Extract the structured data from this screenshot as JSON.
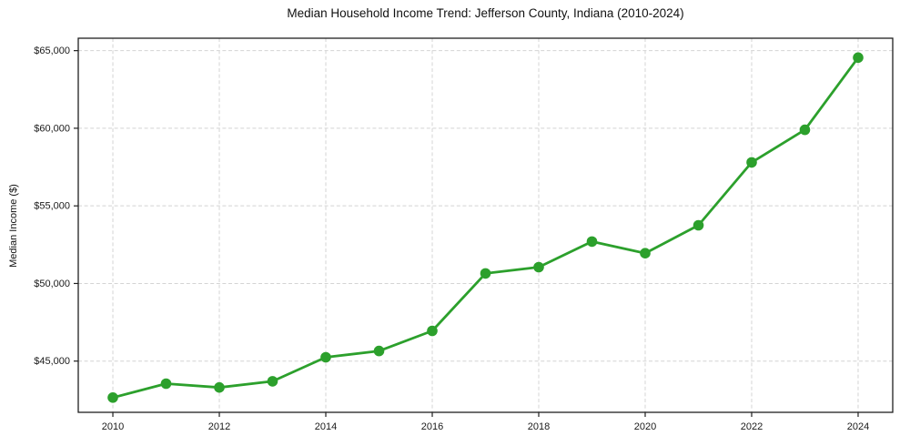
{
  "chart_data": {
    "type": "line",
    "title": "Median Household Income Trend: Jefferson County, Indiana (2010-2024)",
    "xlabel": "",
    "ylabel": "Median Income ($)",
    "x": [
      2010,
      2011,
      2012,
      2013,
      2014,
      2015,
      2016,
      2017,
      2018,
      2019,
      2020,
      2021,
      2022,
      2023,
      2024
    ],
    "series": [
      {
        "name": "Median household income",
        "color": "#2ca02c",
        "marker": "circle",
        "values": [
          42650,
          43550,
          43300,
          43700,
          45250,
          45650,
          46950,
          50650,
          51050,
          52700,
          51950,
          53750,
          57800,
          59900,
          64550
        ]
      }
    ],
    "xticks": [
      {
        "value": 2010,
        "label": "2010"
      },
      {
        "value": 2012,
        "label": "2012"
      },
      {
        "value": 2014,
        "label": "2014"
      },
      {
        "value": 2016,
        "label": "2016"
      },
      {
        "value": 2018,
        "label": "2018"
      },
      {
        "value": 2020,
        "label": "2020"
      },
      {
        "value": 2022,
        "label": "2022"
      },
      {
        "value": 2024,
        "label": "2024"
      }
    ],
    "yticks": [
      {
        "value": 45000,
        "label": "$45,000"
      },
      {
        "value": 50000,
        "label": "$50,000"
      },
      {
        "value": 55000,
        "label": "$55,000"
      },
      {
        "value": 60000,
        "label": "$60,000"
      },
      {
        "value": 65000,
        "label": "$65,000"
      }
    ],
    "xlim": [
      2009.35,
      2024.65
    ],
    "ylim": [
      41700,
      65800
    ],
    "grid": true,
    "grid_style": "dashed",
    "legend": false,
    "colors": {
      "line": "#2ca02c",
      "grid": "#d4d4d4",
      "spine": "#1f1f1f",
      "text": "#1a1a1a",
      "background": "#ffffff"
    }
  }
}
